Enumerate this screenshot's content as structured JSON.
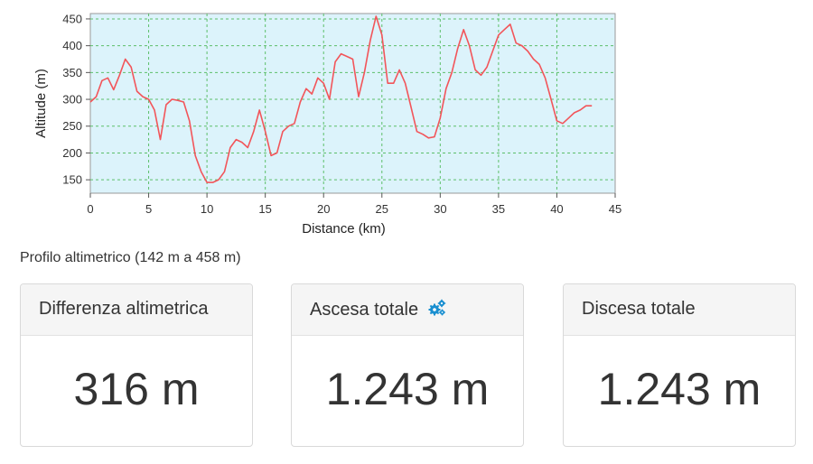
{
  "chart_data": {
    "type": "line",
    "xlabel": "Distance (km)",
    "ylabel": "Altitude (m)",
    "xlim": [
      0,
      45
    ],
    "ylim": [
      125,
      460
    ],
    "xticks": [
      0,
      5,
      10,
      15,
      20,
      25,
      30,
      35,
      40,
      45
    ],
    "yticks": [
      150,
      200,
      250,
      300,
      350,
      400,
      450
    ],
    "grid": true,
    "series": [
      {
        "color": "#f2555a",
        "x": [
          0,
          0.5,
          1,
          1.5,
          2,
          2.5,
          3,
          3.5,
          4,
          4.5,
          5,
          5.5,
          6,
          6.5,
          7,
          7.5,
          8,
          8.5,
          9,
          9.5,
          10,
          10.5,
          11,
          11.5,
          12,
          12.5,
          13,
          13.5,
          14,
          14.5,
          15,
          15.5,
          16,
          16.5,
          17,
          17.5,
          18,
          18.5,
          19,
          19.5,
          20,
          20.5,
          21,
          21.5,
          22,
          22.5,
          23,
          23.5,
          24,
          24.5,
          25,
          25.5,
          26,
          26.5,
          27,
          27.5,
          28,
          28.5,
          29,
          29.5,
          30,
          30.5,
          31,
          31.5,
          32,
          32.5,
          33,
          33.5,
          34,
          34.5,
          35,
          35.5,
          36,
          36.5,
          37,
          37.5,
          38,
          38.5,
          39,
          39.5,
          40,
          40.5,
          41,
          41.5,
          42,
          42.5,
          43
        ],
        "y": [
          295,
          305,
          335,
          340,
          318,
          345,
          375,
          360,
          315,
          305,
          300,
          280,
          225,
          290,
          300,
          298,
          295,
          260,
          195,
          165,
          145,
          145,
          150,
          165,
          210,
          225,
          220,
          210,
          240,
          280,
          240,
          195,
          200,
          240,
          250,
          255,
          295,
          320,
          310,
          340,
          330,
          300,
          370,
          385,
          380,
          375,
          305,
          350,
          410,
          455,
          420,
          330,
          330,
          355,
          330,
          285,
          240,
          235,
          228,
          230,
          265,
          320,
          350,
          395,
          430,
          400,
          355,
          345,
          360,
          390,
          420,
          430,
          440,
          405,
          400,
          390,
          375,
          365,
          340,
          300,
          260,
          255,
          265,
          275,
          280,
          288,
          288
        ]
      }
    ]
  },
  "caption": "Profilo altimetrico (142 m a 458 m)",
  "cards": [
    {
      "title": "Differenza altimetrica",
      "value": "316 m"
    },
    {
      "title": "Ascesa totale",
      "value": "1.243 m",
      "icon": "gears-icon"
    },
    {
      "title": "Discesa totale",
      "value": "1.243 m"
    }
  ]
}
